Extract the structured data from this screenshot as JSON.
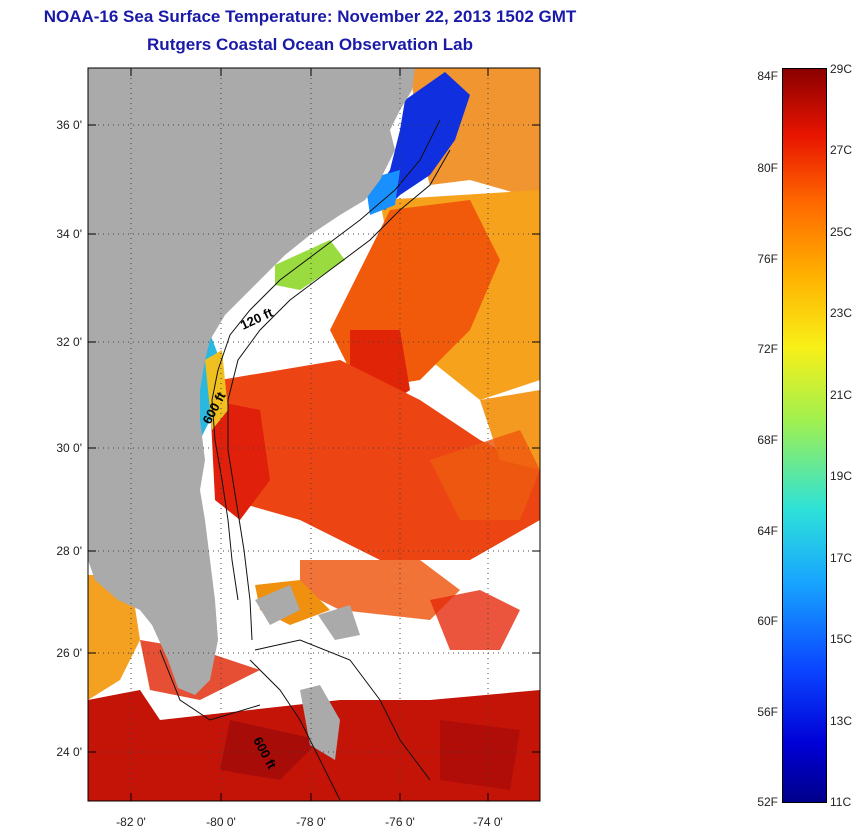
{
  "title": {
    "line1": "NOAA-16 Sea Surface Temperature:  November 22, 2013 1502 GMT",
    "line2": "Rutgers Coastal Ocean Observation Lab"
  },
  "map": {
    "lat_labels": [
      "36 0'",
      "34 0'",
      "32 0'",
      "30 0'",
      "28 0'",
      "26 0'",
      "24 0'"
    ],
    "lon_labels": [
      "-82 0'",
      "-80 0'",
      "-78 0'",
      "-76 0'",
      "-74 0'"
    ],
    "contour_labels": [
      "120 ft",
      "600 ft",
      "600 ft"
    ],
    "colors": {
      "land": "#aaaaaa",
      "cloud": "#ffffff",
      "warm": "#e8200a",
      "cool": "#1a6cff"
    }
  },
  "colorbar": {
    "fahrenheit": [
      "84F",
      "80F",
      "76F",
      "72F",
      "68F",
      "64F",
      "60F",
      "56F",
      "52F"
    ],
    "celsius": [
      "29C",
      "27C",
      "25C",
      "23C",
      "21C",
      "19C",
      "17C",
      "15C",
      "13C",
      "11C"
    ]
  }
}
